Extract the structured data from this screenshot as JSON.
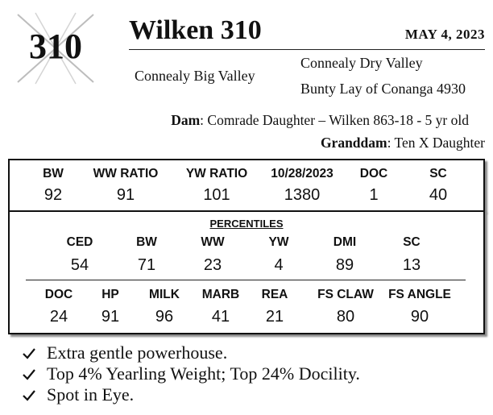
{
  "lot": {
    "number": "310"
  },
  "header": {
    "title": "Wilken 310",
    "sale_date": "MAY  4, 2023"
  },
  "pedigree": {
    "sire": "Connealy Big Valley",
    "sire_sire": "Connealy Dry Valley",
    "sire_dam": "Bunty Lay of Conanga 4930",
    "dam_label": "Dam",
    "dam_value": ": Comrade Daughter – Wilken 863-18 - 5 yr old",
    "granddam_label": "Granddam",
    "granddam_value": ": Ten X Daughter"
  },
  "performance": {
    "columns": [
      {
        "label": "BW",
        "value": "92"
      },
      {
        "label": "WW RATIO",
        "value": "91"
      },
      {
        "label": "YW RATIO",
        "value": "101"
      },
      {
        "label": "10/28/2023",
        "value": "1380"
      },
      {
        "label": "DOC",
        "value": "1"
      },
      {
        "label": "SC",
        "value": "40"
      }
    ]
  },
  "percentiles": {
    "title": "PERCENTILES",
    "row1": [
      {
        "label": "CED",
        "value": "54"
      },
      {
        "label": "BW",
        "value": "71"
      },
      {
        "label": "WW",
        "value": "23"
      },
      {
        "label": "YW",
        "value": "4"
      },
      {
        "label": "DMI",
        "value": "89"
      },
      {
        "label": "SC",
        "value": "13"
      }
    ],
    "row2": [
      {
        "label": "DOC",
        "value": "24"
      },
      {
        "label": "HP",
        "value": "91"
      },
      {
        "label": "MILK",
        "value": "96"
      },
      {
        "label": "MARB",
        "value": "41"
      },
      {
        "label": "REA",
        "value": "21"
      },
      {
        "label": "FS CLAW",
        "value": "80"
      },
      {
        "label": "FS ANGLE",
        "value": "90"
      }
    ]
  },
  "notes": [
    "Extra gentle powerhouse.",
    "Top 4% Yearling Weight; Top 24% Docility.",
    "Spot in Eye."
  ],
  "icons": {
    "lot_mark": "cross-mark-icon",
    "bullet": "check-icon"
  }
}
